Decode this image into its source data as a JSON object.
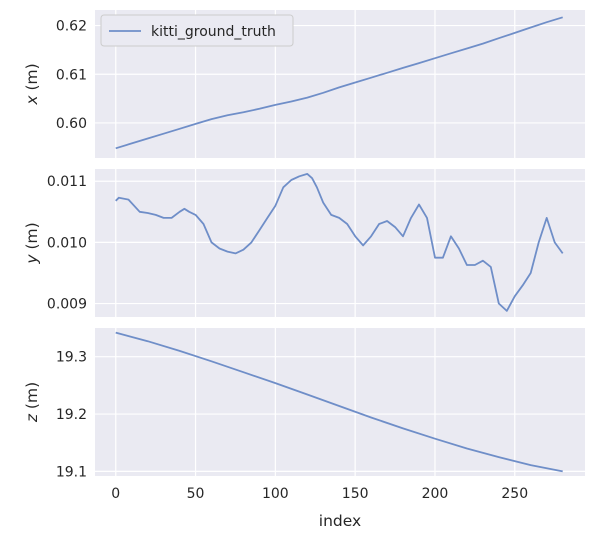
{
  "chart_data": {
    "type": "line",
    "style": {
      "panel_background": "#eaeaf2",
      "grid_color": "#ffffff",
      "line_color": "#6f8ec8"
    },
    "legend": {
      "placement": "top-left",
      "entries": [
        "kitti_ground_truth"
      ]
    },
    "xlabel": "index",
    "xlim": [
      -13,
      294
    ],
    "xticks": [
      "0",
      "50",
      "100",
      "150",
      "200",
      "250"
    ],
    "panels": [
      {
        "ylabel_var": "x",
        "ylabel_unit": " (m)",
        "ylim": [
          0.5928,
          0.6232
        ],
        "yticks": [
          "0.60",
          "0.61",
          "0.62"
        ],
        "yticks_values": [
          0.6,
          0.61,
          0.62
        ],
        "series": [
          {
            "name": "kitti_ground_truth",
            "x": [
              0,
              10,
              20,
              30,
              40,
              50,
              60,
              70,
              80,
              90,
              100,
              110,
              120,
              130,
              140,
              150,
              160,
              170,
              180,
              190,
              200,
              210,
              220,
              230,
              240,
              250,
              260,
              270,
              280
            ],
            "values": [
              0.5948,
              0.5958,
              0.5968,
              0.5978,
              0.5988,
              0.5998,
              0.6008,
              0.6016,
              0.6022,
              0.6029,
              0.6037,
              0.6044,
              0.6052,
              0.6062,
              0.6073,
              0.6083,
              0.6093,
              0.6103,
              0.6113,
              0.6123,
              0.6133,
              0.6143,
              0.6153,
              0.6163,
              0.6174,
              0.6185,
              0.6196,
              0.6207,
              0.6217
            ]
          }
        ]
      },
      {
        "ylabel_var": "y",
        "ylabel_unit": " (m)",
        "ylim": [
          0.00878,
          0.0112
        ],
        "yticks": [
          "0.009",
          "0.010",
          "0.011"
        ],
        "yticks_values": [
          0.009,
          0.01,
          0.011
        ],
        "series": [
          {
            "name": "kitti_ground_truth",
            "x": [
              0,
              2,
              8,
              15,
              20,
              25,
              30,
              35,
              40,
              43,
              46,
              50,
              55,
              60,
              65,
              70,
              75,
              80,
              85,
              90,
              95,
              100,
              105,
              110,
              115,
              120,
              123,
              126,
              130,
              135,
              140,
              145,
              150,
              155,
              160,
              165,
              170,
              175,
              180,
              185,
              190,
              195,
              200,
              205,
              210,
              215,
              220,
              225,
              230,
              235,
              240,
              245,
              250,
              255,
              260,
              265,
              270,
              275,
              280
            ],
            "values": [
              0.01068,
              0.01073,
              0.0107,
              0.0105,
              0.01048,
              0.01045,
              0.0104,
              0.0104,
              0.0105,
              0.01055,
              0.0105,
              0.01045,
              0.0103,
              0.01,
              0.0099,
              0.00985,
              0.00982,
              0.00988,
              0.01,
              0.0102,
              0.0104,
              0.0106,
              0.0109,
              0.01102,
              0.01108,
              0.01112,
              0.01105,
              0.0109,
              0.01065,
              0.01045,
              0.0104,
              0.0103,
              0.0101,
              0.00995,
              0.0101,
              0.0103,
              0.01035,
              0.01025,
              0.0101,
              0.0104,
              0.01062,
              0.0104,
              0.00975,
              0.00975,
              0.0101,
              0.0099,
              0.00963,
              0.00963,
              0.0097,
              0.0096,
              0.009,
              0.00888,
              0.00912,
              0.0093,
              0.0095,
              0.01,
              0.0104,
              0.01,
              0.00982
            ]
          }
        ]
      },
      {
        "ylabel_var": "z",
        "ylabel_unit": " (m)",
        "ylim": [
          19.092,
          19.35
        ],
        "yticks": [
          "19.1",
          "19.2",
          "19.3"
        ],
        "yticks_values": [
          19.1,
          19.2,
          19.3
        ],
        "series": [
          {
            "name": "kitti_ground_truth",
            "x": [
              0,
              20,
              40,
              60,
              80,
              100,
              120,
              140,
              160,
              180,
              200,
              220,
              240,
              260,
              280
            ],
            "values": [
              19.342,
              19.327,
              19.31,
              19.292,
              19.273,
              19.254,
              19.234,
              19.214,
              19.194,
              19.175,
              19.157,
              19.14,
              19.125,
              19.111,
              19.1
            ]
          }
        ]
      }
    ]
  }
}
